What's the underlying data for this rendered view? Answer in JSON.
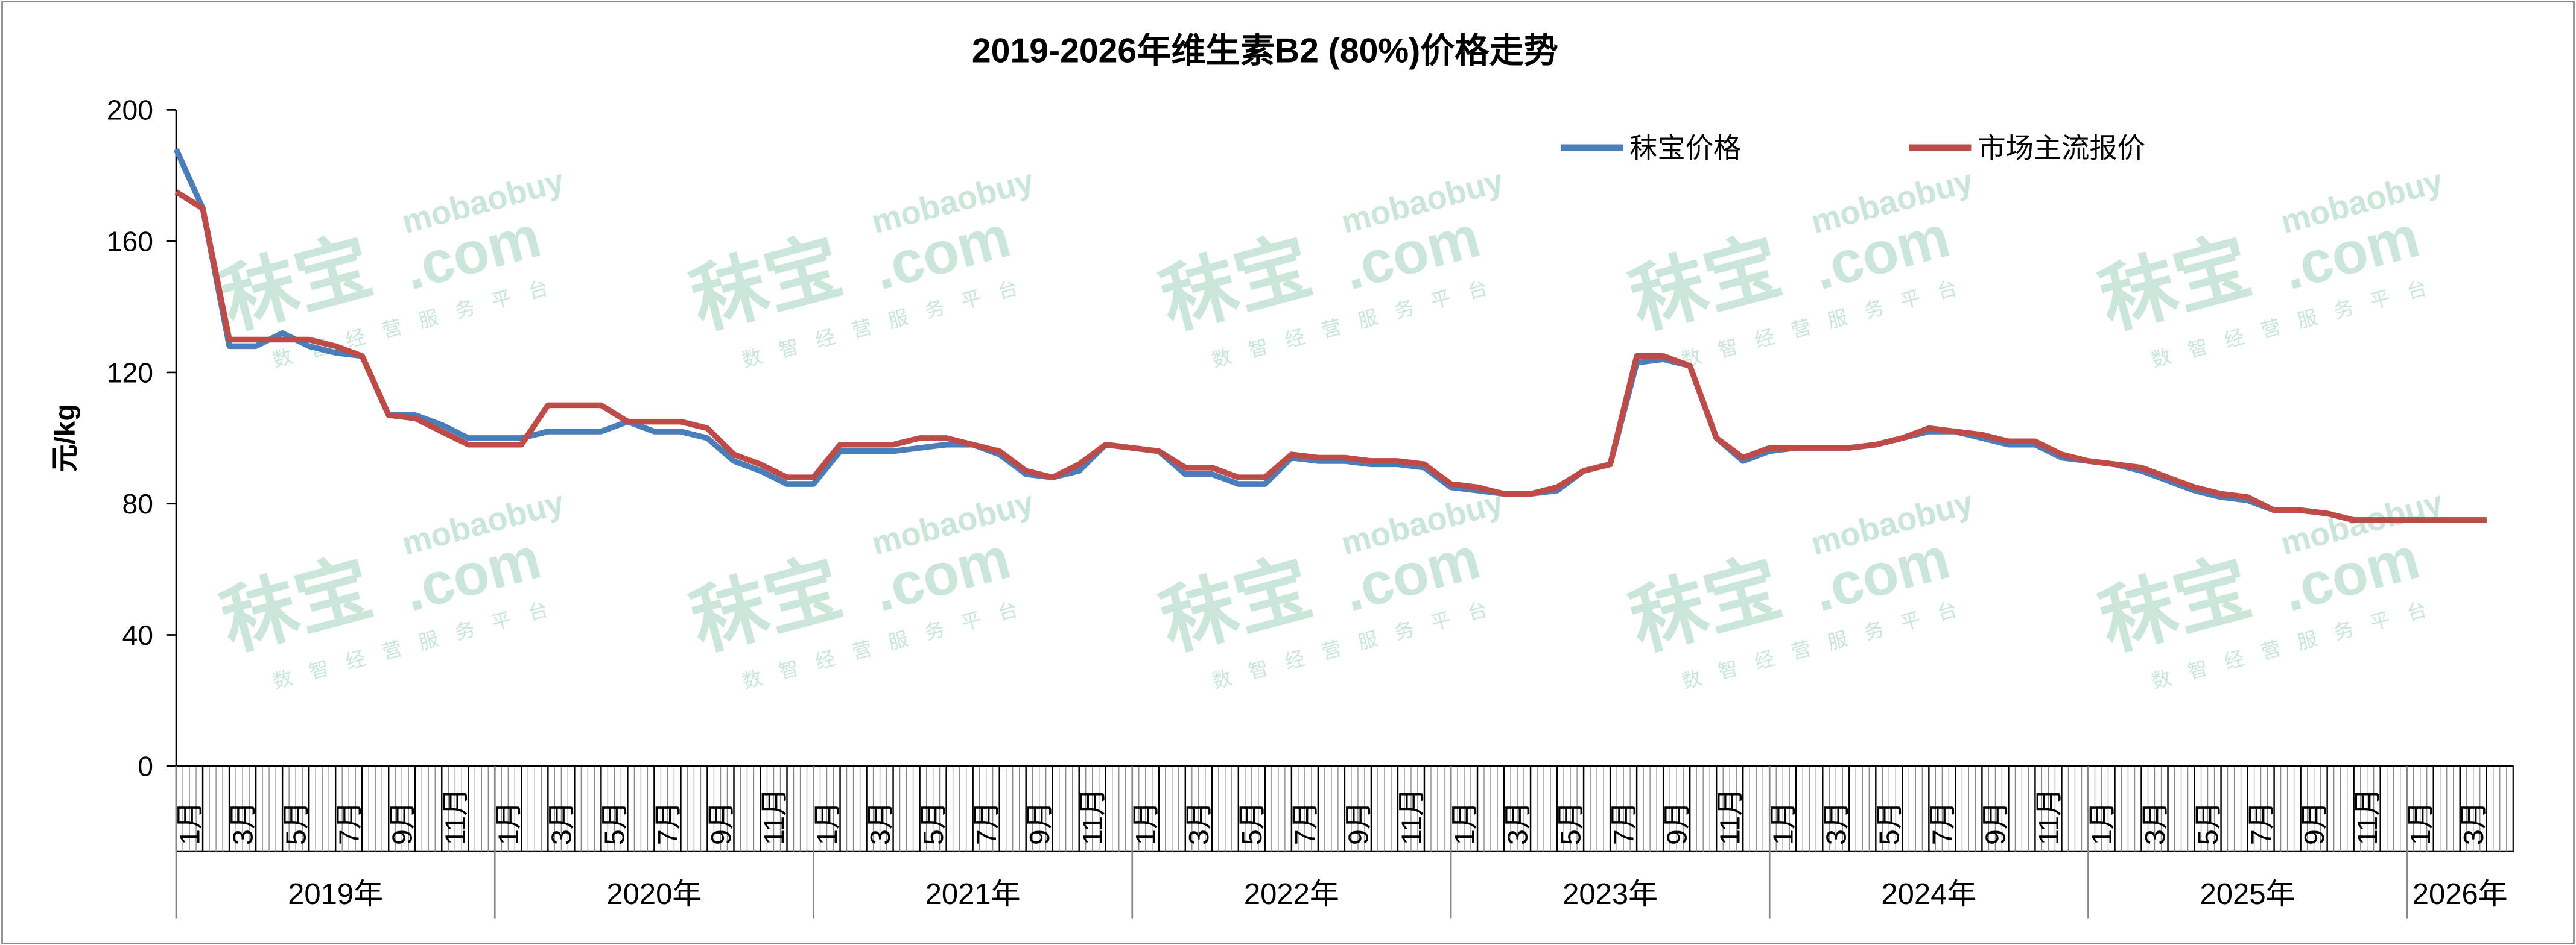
{
  "chart_data": {
    "type": "line",
    "title": "2019-2026年维生素B2 (80%)价格走势",
    "y_label": "元/kg",
    "watermark": {
      "brand": "秣宝",
      "site": "mobaobuy",
      "domain": ".com",
      "slogan": "数智经营服务平台"
    },
    "categories": [
      "1月",
      null,
      "3月",
      null,
      "5月",
      null,
      "7月",
      null,
      "9月",
      null,
      "11月",
      null,
      "1月",
      null,
      "3月",
      null,
      "5月",
      null,
      "7月",
      null,
      "9月",
      null,
      "11月",
      null,
      "1月",
      null,
      "3月",
      null,
      "5月",
      null,
      "7月",
      null,
      "9月",
      null,
      "11月",
      null,
      "1月",
      null,
      "3月",
      null,
      "5月",
      null,
      "7月",
      null,
      "9月",
      null,
      "11月",
      null,
      "1月",
      null,
      "3月",
      null,
      "5月",
      null,
      "7月",
      null,
      "9月",
      null,
      "11月",
      null,
      "1月",
      null,
      "3月",
      null,
      "5月",
      null,
      "7月",
      null,
      "9月",
      null,
      "11月",
      null,
      "1月",
      null,
      "3月",
      null,
      "5月",
      null,
      "7月",
      null,
      "9月",
      null,
      "11月",
      null,
      "1月",
      null,
      "3月",
      null
    ],
    "years": [
      "2019年",
      "2020年",
      "2021年",
      "2022年",
      "2023年",
      "2024年",
      "2025年",
      "2026年"
    ],
    "series": [
      {
        "name": "秣宝价格",
        "color": "#4a7ebb",
        "values": [
          188,
          170,
          128,
          128,
          132,
          128,
          126,
          125,
          107,
          107,
          104,
          100,
          100,
          100,
          102,
          102,
          102,
          105,
          102,
          102,
          100,
          93,
          90,
          86,
          86,
          96,
          96,
          96,
          97,
          98,
          98,
          95,
          89,
          88,
          90,
          98,
          97,
          96,
          89,
          89,
          86,
          86,
          94,
          93,
          93,
          92,
          92,
          91,
          85,
          84,
          83,
          83,
          84,
          90,
          92,
          123,
          124,
          122,
          100,
          93,
          96,
          97,
          97,
          97,
          98,
          100,
          102,
          102,
          100,
          98,
          98,
          94,
          93,
          92,
          90,
          87,
          84,
          82,
          81,
          78,
          78,
          77,
          75,
          75,
          75,
          75,
          75,
          75
        ]
      },
      {
        "name": "市场主流报价",
        "color": "#be4b48",
        "values": [
          175,
          170,
          130,
          130,
          130,
          130,
          128,
          125,
          107,
          106,
          102,
          98,
          98,
          98,
          110,
          110,
          110,
          105,
          105,
          105,
          103,
          95,
          92,
          88,
          88,
          98,
          98,
          98,
          100,
          100,
          98,
          96,
          90,
          88,
          92,
          98,
          97,
          96,
          91,
          91,
          88,
          88,
          95,
          94,
          94,
          93,
          93,
          92,
          86,
          85,
          83,
          83,
          85,
          90,
          92,
          125,
          125,
          122,
          100,
          94,
          97,
          97,
          97,
          97,
          98,
          100,
          103,
          102,
          101,
          99,
          99,
          95,
          93,
          92,
          91,
          88,
          85,
          83,
          82,
          78,
          78,
          77,
          75,
          75,
          75,
          75,
          75,
          75
        ]
      }
    ],
    "ylim": [
      0,
      200
    ],
    "yticks": [
      0,
      40,
      80,
      120,
      160,
      200
    ],
    "grid": false,
    "legend": "top-right"
  }
}
